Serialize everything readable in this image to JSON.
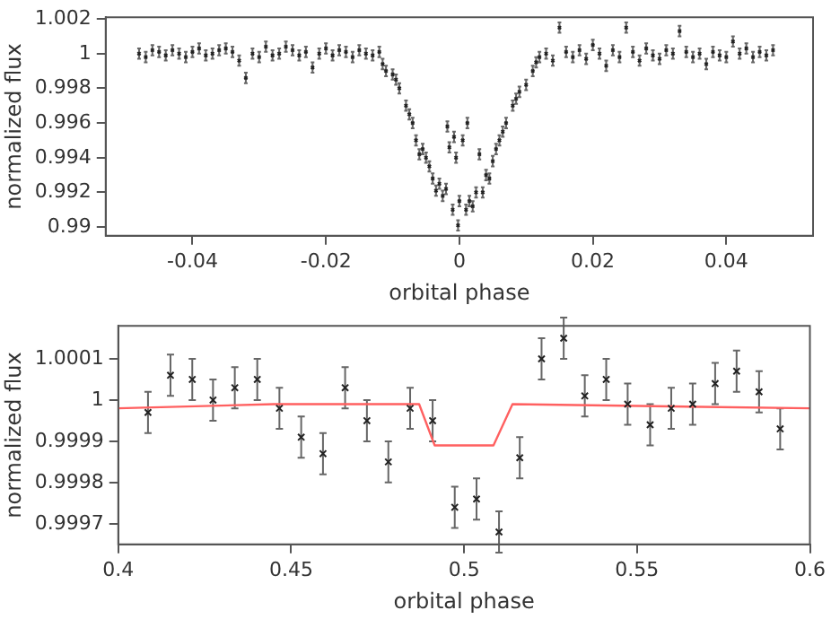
{
  "chart_data": [
    {
      "type": "scatter",
      "xlabel": "orbital phase",
      "ylabel": "normalized flux",
      "marker": "cross",
      "grid": false,
      "legend": false,
      "xlim": [
        -0.053,
        0.053
      ],
      "xticks": [
        -0.04,
        -0.02,
        0,
        0.02,
        0.04
      ],
      "ylim": [
        0.9895,
        1.0021
      ],
      "yticks": [
        0.99,
        0.992,
        0.994,
        0.996,
        0.998,
        1,
        1.002
      ],
      "series": [
        {
          "color": "#222222",
          "x": [
            -0.048,
            -0.047,
            -0.046,
            -0.045,
            -0.044,
            -0.043,
            -0.042,
            -0.041,
            -0.04,
            -0.039,
            -0.038,
            -0.037,
            -0.036,
            -0.035,
            -0.034,
            -0.033,
            -0.032,
            -0.031,
            -0.03,
            -0.029,
            -0.028,
            -0.027,
            -0.026,
            -0.025,
            -0.024,
            -0.023,
            -0.022,
            -0.021,
            -0.02,
            -0.019,
            -0.018,
            -0.017,
            -0.016,
            -0.015,
            -0.014,
            -0.013,
            -0.012,
            -0.0115,
            -0.011,
            -0.01,
            -0.0095,
            -0.009,
            -0.008,
            -0.0075,
            -0.007,
            -0.0065,
            -0.006,
            -0.0055,
            -0.005,
            -0.0045,
            -0.004,
            -0.0035,
            -0.003,
            -0.0025,
            -0.002,
            -0.0018,
            -0.0015,
            -0.001,
            -0.0008,
            -0.0005,
            -0.0002,
            0,
            0.0005,
            0.001,
            0.0012,
            0.0015,
            0.002,
            0.0025,
            0.003,
            0.0035,
            0.004,
            0.0045,
            0.005,
            0.0055,
            0.006,
            0.0065,
            0.007,
            0.008,
            0.0085,
            0.009,
            0.01,
            0.011,
            0.0115,
            0.012,
            0.013,
            0.014,
            0.015,
            0.016,
            0.017,
            0.018,
            0.019,
            0.02,
            0.021,
            0.022,
            0.023,
            0.024,
            0.025,
            0.026,
            0.027,
            0.028,
            0.029,
            0.03,
            0.031,
            0.032,
            0.033,
            0.034,
            0.035,
            0.036,
            0.037,
            0.038,
            0.039,
            0.04,
            0.041,
            0.042,
            0.043,
            0.044,
            0.045,
            0.046,
            0.047
          ],
          "values": [
            1.0,
            0.9998,
            1.0002,
            1.0001,
            0.9999,
            1.0002,
            1.0,
            0.9998,
            1.0001,
            1.0003,
            0.9999,
            1.0,
            1.0002,
            1.0003,
            1.0001,
            0.9996,
            0.9986,
            1.0,
            0.9998,
            1.0004,
            0.9999,
            1.0,
            1.0004,
            1.0002,
            0.9999,
            1.0001,
            0.9992,
            1.0,
            1.0003,
            0.9999,
            1.0002,
            1.0001,
            0.9998,
            1.0002,
            1.0,
            0.9999,
            1.0001,
            0.9994,
            0.999,
            0.9988,
            0.9985,
            0.998,
            0.997,
            0.9965,
            0.996,
            0.995,
            0.9942,
            0.9945,
            0.994,
            0.9935,
            0.9928,
            0.9921,
            0.9925,
            0.9918,
            0.9922,
            0.9958,
            0.9946,
            0.991,
            0.9952,
            0.994,
            0.9901,
            0.9915,
            0.995,
            0.991,
            0.996,
            0.9915,
            0.9912,
            0.992,
            0.9942,
            0.992,
            0.993,
            0.9928,
            0.9938,
            0.9945,
            0.995,
            0.9955,
            0.996,
            0.997,
            0.9974,
            0.9978,
            0.9982,
            0.999,
            0.9995,
            0.9998,
            1.0,
            0.9996,
            1.0015,
            1.0001,
            0.9998,
            1.0002,
            0.9997,
            1.0005,
            1.0,
            0.9993,
            1.0002,
            0.9998,
            1.0015,
            1.0001,
            0.9996,
            1.0003,
            0.9999,
            0.9997,
            1.0002,
            1.0,
            1.0013,
            1.0001,
            0.9998,
            1.0,
            0.9994,
            1.0001,
            0.9999,
            0.9998,
            1.0007,
            1.0,
            1.0003,
            0.9998,
            1.0001,
            0.9999,
            1.0002
          ],
          "errors": [
            0.0003,
            0.0003,
            0.0003,
            0.0003,
            0.0003,
            0.0003,
            0.0003,
            0.0003,
            0.0003,
            0.0003,
            0.0003,
            0.0003,
            0.0003,
            0.0003,
            0.0003,
            0.0003,
            0.0003,
            0.0003,
            0.0003,
            0.0003,
            0.0003,
            0.0003,
            0.0003,
            0.0003,
            0.0003,
            0.0003,
            0.0003,
            0.0003,
            0.0003,
            0.0003,
            0.0003,
            0.0003,
            0.0003,
            0.0003,
            0.0003,
            0.0003,
            0.0003,
            0.0003,
            0.0003,
            0.0003,
            0.0003,
            0.0003,
            0.0003,
            0.0003,
            0.0003,
            0.0003,
            0.0003,
            0.0003,
            0.0003,
            0.0003,
            0.0003,
            0.0003,
            0.0003,
            0.0003,
            0.0003,
            0.0003,
            0.0003,
            0.0003,
            0.0003,
            0.0003,
            0.0003,
            0.0003,
            0.0003,
            0.0003,
            0.0003,
            0.0003,
            0.0003,
            0.0003,
            0.0003,
            0.0003,
            0.0003,
            0.0003,
            0.0003,
            0.0003,
            0.0003,
            0.0003,
            0.0003,
            0.0003,
            0.0003,
            0.0003,
            0.0003,
            0.0003,
            0.0003,
            0.0003,
            0.0003,
            0.0003,
            0.0003,
            0.0003,
            0.0003,
            0.0003,
            0.0003,
            0.0003,
            0.0003,
            0.0003,
            0.0003,
            0.0003,
            0.0003,
            0.0003,
            0.0003,
            0.0003,
            0.0003,
            0.0003,
            0.0003,
            0.0003,
            0.0003,
            0.0003,
            0.0003,
            0.0003,
            0.0003,
            0.0003,
            0.0003,
            0.0003,
            0.0003,
            0.0003,
            0.0003,
            0.0003,
            0.0003,
            0.0003,
            0.0003
          ]
        }
      ]
    },
    {
      "type": "scatter",
      "xlabel": "orbital phase",
      "ylabel": "normalized flux",
      "marker": "cross",
      "grid": false,
      "legend": false,
      "xlim": [
        0.4,
        0.6
      ],
      "xticks": [
        0.4,
        0.45,
        0.5,
        0.55,
        0.6
      ],
      "ylim": [
        0.99965,
        1.00018
      ],
      "yticks": [
        0.9997,
        0.9998,
        0.9999,
        1,
        1.0001
      ],
      "series": [
        {
          "color": "#222222",
          "x": [
            0.4086,
            0.4151,
            0.4214,
            0.4274,
            0.4337,
            0.4402,
            0.4466,
            0.4529,
            0.4592,
            0.4656,
            0.4719,
            0.4781,
            0.4844,
            0.4909,
            0.4973,
            0.5036,
            0.5101,
            0.5161,
            0.5224,
            0.5288,
            0.5349,
            0.5411,
            0.5473,
            0.5538,
            0.5599,
            0.5661,
            0.5726,
            0.5788,
            0.5853,
            0.5914
          ],
          "values": [
            0.99997,
            1.00006,
            1.00005,
            1.0,
            1.00003,
            1.00005,
            0.99998,
            0.99991,
            0.99987,
            1.00003,
            0.99995,
            0.99985,
            0.99998,
            0.99995,
            0.99974,
            0.99976,
            0.99968,
            0.99986,
            1.0001,
            1.00015,
            1.00001,
            1.00005,
            0.99999,
            0.99994,
            0.99998,
            0.99999,
            1.00004,
            1.00007,
            1.00002,
            0.99993
          ],
          "errors": [
            5e-05,
            5e-05,
            5e-05,
            5e-05,
            5e-05,
            5e-05,
            5e-05,
            5e-05,
            5e-05,
            5e-05,
            5e-05,
            5e-05,
            5e-05,
            5e-05,
            5e-05,
            5e-05,
            5e-05,
            5e-05,
            5e-05,
            5e-05,
            5e-05,
            5e-05,
            5e-05,
            5e-05,
            5e-05,
            5e-05,
            5e-05,
            5e-05,
            5e-05,
            5e-05
          ]
        },
        {
          "type": "line",
          "marker": "none",
          "color": "#ff6060",
          "x": [
            0.4,
            0.445,
            0.487,
            0.4915,
            0.5085,
            0.514,
            0.6
          ],
          "values": [
            0.99998,
            0.99999,
            0.99999,
            0.99989,
            0.99989,
            0.99999,
            0.99998
          ]
        }
      ]
    }
  ]
}
